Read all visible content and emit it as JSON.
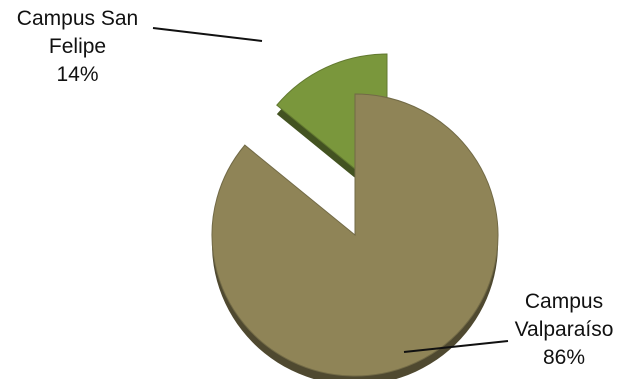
{
  "chart_data": {
    "type": "pie",
    "style": "3d-exploded",
    "legend": "none",
    "slices": [
      {
        "label_lines": [
          "Campus San",
          "Felipe"
        ],
        "value": 14,
        "value_label": "14%",
        "color": "#7a973c",
        "exploded": true
      },
      {
        "label_lines": [
          "Campus",
          "Valparaíso"
        ],
        "value": 86,
        "value_label": "86%",
        "color": "#8f8457",
        "exploded": false
      }
    ]
  }
}
